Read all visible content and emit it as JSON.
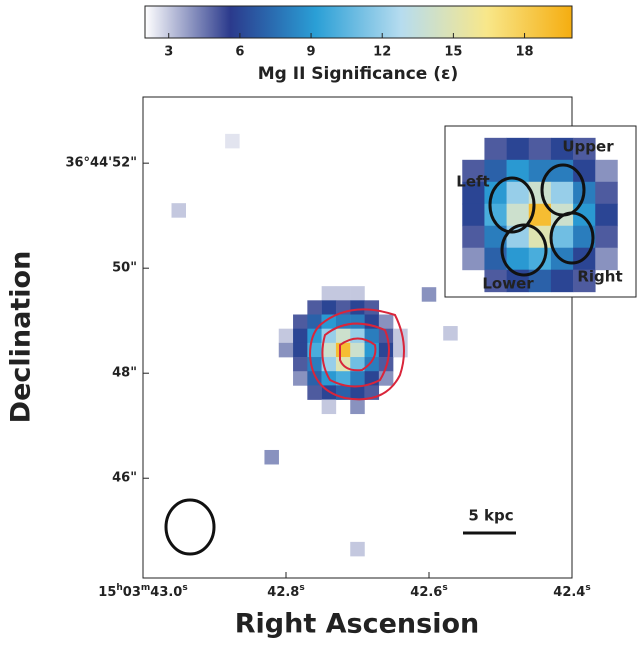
{
  "chart_data": {
    "type": "heatmap",
    "colorbar": {
      "label": "Mg II Significance (ε)",
      "clim": [
        2,
        20
      ],
      "ticks": [
        3,
        6,
        9,
        12,
        15,
        18
      ],
      "colormap": [
        "#ffffff",
        "#2b3a8c",
        "#2a9fd6",
        "#b6dcef",
        "#f8e78a",
        "#f5ad10"
      ]
    },
    "x_label": "Right Ascension",
    "y_label": "Declination",
    "xlim": [
      43.0,
      42.4
    ],
    "ylim": [
      44.1,
      53.26
    ],
    "xticks": [
      {
        "value": 43.0,
        "label": "15h03m43.0s"
      },
      {
        "value": 42.8,
        "label": "42.8s"
      },
      {
        "value": 42.6,
        "label": "42.6s"
      },
      {
        "value": 42.4,
        "label": "42.4s"
      }
    ],
    "yticks": [
      {
        "value": 52,
        "label": "36°44'52\""
      },
      {
        "value": 50,
        "label": "50\""
      },
      {
        "value": 48,
        "label": "48\""
      },
      {
        "value": 46,
        "label": "46\""
      }
    ],
    "scale_bar": "5 kpc",
    "inset_labels": [
      "Upper",
      "Left",
      "Right",
      "Lower"
    ],
    "pixels": [
      [
        42.74,
        49.52,
        3
      ],
      [
        42.72,
        49.52,
        3
      ],
      [
        42.7,
        49.52,
        3
      ],
      [
        42.76,
        49.25,
        5
      ],
      [
        42.74,
        49.25,
        6
      ],
      [
        42.72,
        49.25,
        5
      ],
      [
        42.7,
        49.25,
        6
      ],
      [
        42.68,
        49.25,
        5
      ],
      [
        42.78,
        48.98,
        5
      ],
      [
        42.76,
        48.98,
        7
      ],
      [
        42.74,
        48.98,
        9
      ],
      [
        42.72,
        48.98,
        8
      ],
      [
        42.7,
        48.98,
        8
      ],
      [
        42.68,
        48.98,
        6
      ],
      [
        42.66,
        48.98,
        4
      ],
      [
        42.8,
        48.71,
        3
      ],
      [
        42.78,
        48.71,
        6
      ],
      [
        42.76,
        48.71,
        9
      ],
      [
        42.74,
        48.71,
        12
      ],
      [
        42.72,
        48.71,
        14
      ],
      [
        42.7,
        48.71,
        12
      ],
      [
        42.68,
        48.71,
        8
      ],
      [
        42.66,
        48.71,
        5
      ],
      [
        42.64,
        48.71,
        3
      ],
      [
        42.8,
        48.44,
        4
      ],
      [
        42.78,
        48.44,
        6
      ],
      [
        42.76,
        48.44,
        10
      ],
      [
        42.74,
        48.44,
        14
      ],
      [
        42.72,
        48.44,
        19
      ],
      [
        42.7,
        48.44,
        14
      ],
      [
        42.68,
        48.44,
        9
      ],
      [
        42.66,
        48.44,
        6
      ],
      [
        42.64,
        48.44,
        3
      ],
      [
        42.78,
        48.17,
        5
      ],
      [
        42.76,
        48.17,
        8
      ],
      [
        42.74,
        48.17,
        12
      ],
      [
        42.72,
        48.17,
        15
      ],
      [
        42.7,
        48.17,
        11
      ],
      [
        42.68,
        48.17,
        8
      ],
      [
        42.66,
        48.17,
        5
      ],
      [
        42.78,
        47.9,
        4
      ],
      [
        42.76,
        47.9,
        7
      ],
      [
        42.74,
        47.9,
        9
      ],
      [
        42.72,
        47.9,
        10
      ],
      [
        42.7,
        47.9,
        8
      ],
      [
        42.68,
        47.9,
        6
      ],
      [
        42.66,
        47.9,
        4
      ],
      [
        42.76,
        47.63,
        5
      ],
      [
        42.74,
        47.63,
        6
      ],
      [
        42.72,
        47.63,
        7
      ],
      [
        42.7,
        47.63,
        6
      ],
      [
        42.68,
        47.63,
        5
      ],
      [
        42.74,
        47.36,
        3
      ],
      [
        42.7,
        47.36,
        4
      ],
      [
        42.875,
        52.42,
        2.5
      ],
      [
        42.95,
        51.1,
        3
      ],
      [
        42.82,
        46.4,
        4
      ],
      [
        42.7,
        44.65,
        3
      ],
      [
        42.6,
        49.5,
        4
      ],
      [
        42.57,
        48.76,
        3
      ]
    ]
  }
}
